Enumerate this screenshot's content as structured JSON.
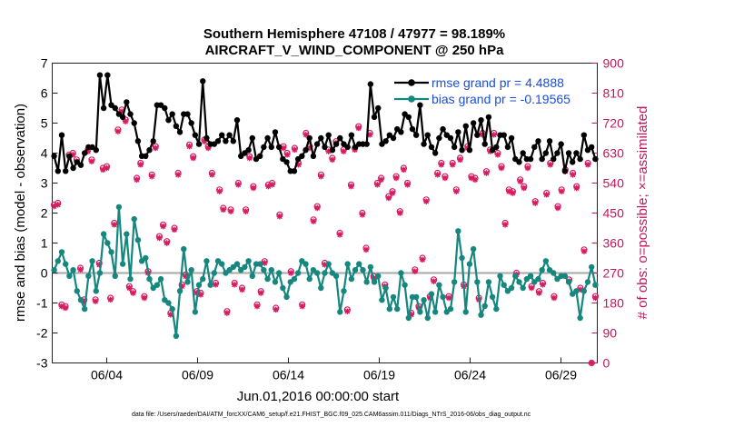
{
  "chart_data": {
    "type": "line",
    "title": "Southern Hemisphere 47108 / 47977 = 98.189%",
    "subtitle": "AIRCRAFT_V_WIND_COMPONENT @ 250 hPa",
    "xlabel": "Jun.01,2016 00:00:00 start",
    "ylabel": "rmse and bias (model - observation)",
    "ylabel_right": "# of obs: o=possible; ×=assimilated",
    "ylim": [
      -3,
      7
    ],
    "ylim_right": [
      0,
      900
    ],
    "xlim": [
      1.0,
      31.0
    ],
    "x_ticks": [
      4,
      9,
      14,
      19,
      24,
      29
    ],
    "x_tick_labels": [
      "06/04",
      "06/09",
      "06/14",
      "06/19",
      "06/24",
      "06/29"
    ],
    "y_ticks": [
      -3,
      -2,
      -1,
      0,
      1,
      2,
      3,
      4,
      5,
      6,
      7
    ],
    "y_tick_labels": [
      "-3",
      "-2",
      "-1",
      "0",
      "1",
      "2",
      "3",
      "4",
      "5",
      "6",
      "7"
    ],
    "y_ticks_right": [
      0,
      90,
      180,
      270,
      360,
      450,
      540,
      630,
      720,
      810,
      900
    ],
    "y_tick_labels_right": [
      "0",
      "90",
      "180",
      "270",
      "360",
      "450",
      "540",
      "630",
      "720",
      "810",
      "900"
    ],
    "legend": [
      {
        "name": "rmse grand pr = 4.4888",
        "color": "#000000"
      },
      {
        "name": "bias grand pr = -0.19565",
        "color": "#16877f"
      }
    ],
    "legend_position": "top-right",
    "footnote": "data file: /Users/raeder/DAI/ATM_forcXX/CAM6_setup/f.e21.FHIST_BGC.f09_025.CAM6assim.011/Diags_NTrS_2016-06/obs_diag_output.nc",
    "series": [
      {
        "name": "rmse",
        "color": "#000000",
        "values": [
          3.9,
          3.4,
          4.6,
          3.4,
          3.9,
          3.5,
          3.7,
          3.6,
          4.0,
          4.2,
          4.2,
          4.1,
          6.6,
          5.5,
          6.6,
          5.6,
          5.5,
          5.3,
          5.2,
          5.7,
          5.3,
          5.0,
          4.4,
          3.9,
          3.9,
          4.1,
          4.4,
          5.6,
          5.6,
          5.5,
          5.1,
          5.3,
          4.9,
          4.7,
          5.3,
          5.3,
          5.0,
          4.6,
          4.3,
          6.4,
          4.5,
          4.3,
          4.3,
          4.4,
          4.6,
          4.4,
          4.6,
          4.4,
          5.1,
          3.9,
          4.0,
          4.1,
          4.5,
          3.8,
          3.9,
          4.2,
          4.5,
          4.2,
          4.7,
          4.2,
          3.8,
          3.7,
          3.4,
          3.4,
          3.8,
          3.9,
          4.1,
          4.5,
          3.9,
          4.3,
          4.5,
          4.2,
          4.6,
          4.1,
          4.3,
          4.5,
          4.3,
          4.2,
          4.6,
          4.2,
          4.3,
          4.3,
          4.3,
          6.3,
          5.2,
          5.5,
          4.3,
          4.4,
          4.6,
          4.5,
          4.8,
          4.7,
          5.3,
          5.2,
          4.8,
          4.6,
          5.6,
          4.3,
          4.6,
          4.2,
          4.0,
          4.5,
          4.8,
          4.6,
          4.5,
          4.2,
          4.7,
          4.1,
          4.9,
          4.1,
          5.0,
          4.6,
          5.1,
          4.3,
          5.2,
          4.1,
          4.2,
          4.6,
          4.6,
          4.2,
          4.5,
          3.8,
          3.7,
          4.0,
          3.8,
          3.8,
          4.2,
          4.4,
          3.8,
          4.0,
          4.4,
          3.8,
          4.0,
          4.3,
          3.4,
          4.0,
          3.7,
          4.0,
          3.8,
          4.6,
          4.1,
          4.2,
          3.8
        ]
      },
      {
        "name": "bias",
        "color": "#16877f",
        "values": [
          0.1,
          0.4,
          0.7,
          0.3,
          -0.1,
          0.1,
          -0.6,
          -0.9,
          -1.2,
          -0.1,
          0.4,
          -0.6,
          0.0,
          1.3,
          1.0,
          0.7,
          -0.1,
          2.2,
          0.3,
          1.3,
          -0.2,
          1.8,
          1.1,
          0.4,
          0.5,
          -0.2,
          -0.5,
          -0.4,
          -0.2,
          -0.9,
          -1.0,
          -1.2,
          -2.1,
          -0.6,
          0.8,
          -0.3,
          0.1,
          -1.3,
          -0.4,
          -0.2,
          0.4,
          -0.4,
          0.0,
          0.4,
          0.3,
          0.0,
          0.1,
          0.2,
          0.3,
          0.1,
          0.2,
          0.4,
          -0.1,
          0.3,
          0.3,
          0.1,
          -0.2,
          0.1,
          -0.3,
          0.0,
          -0.5,
          -0.8,
          -0.3,
          -0.2,
          0.0,
          0.4,
          0.3,
          -0.2,
          0.1,
          0.0,
          -0.5,
          0.0,
          0.3,
          0.0,
          -0.1,
          -1.3,
          -0.6,
          0.3,
          -0.2,
          0.1,
          0.3,
          0.1,
          -0.3,
          0.2,
          -0.3,
          -0.1,
          -0.9,
          -0.5,
          -1.2,
          -0.8,
          -1.2,
          0.0,
          -0.4,
          -1.5,
          -0.8,
          -0.8,
          -1.3,
          -0.9,
          -1.5,
          -0.7,
          -1.3,
          -0.4,
          -0.8,
          -1.3,
          -1.2,
          -0.3,
          1.4,
          0.5,
          -1.3,
          0.3,
          0.8,
          -0.3,
          -1.4,
          -1.1,
          -0.3,
          -0.8,
          -1.2,
          -0.1,
          -0.4,
          -0.6,
          -0.5,
          -0.1,
          -0.3,
          -0.5,
          -0.2,
          -0.1,
          -0.3,
          -0.2,
          0.1,
          0.4,
          0.1,
          0.0,
          -0.2,
          -0.1,
          -0.1,
          -0.3,
          -0.7,
          -0.6,
          -1.5,
          -0.6,
          -0.3,
          0.2,
          -0.4
        ]
      },
      {
        "name": "possible",
        "axis": "right",
        "marker": "o",
        "color": "#d81b60",
        "values": [
          475,
          480,
          175,
          170,
          625,
          630,
          610,
          285,
          190,
          640,
          610,
          190,
          300,
          585,
          590,
          195,
          420,
          700,
          760,
          730,
          230,
          215,
          555,
          600,
          200,
          275,
          565,
          650,
          380,
          415,
          365,
          150,
          405,
          570,
          235,
          265,
          655,
          620,
          215,
          210,
          670,
          650,
          570,
          240,
          520,
          465,
          155,
          460,
          240,
          540,
          225,
          460,
          620,
          530,
          175,
          215,
          305,
          535,
          540,
          165,
          445,
          650,
          630,
          275,
          645,
          600,
          175,
          690,
          650,
          430,
          470,
          565,
          300,
          640,
          615,
          665,
          390,
          640,
          160,
          535,
          645,
          710,
          450,
          345,
          690,
          260,
          540,
          555,
          235,
          500,
          515,
          560,
          455,
          585,
          540,
          150,
          280,
          170,
          315,
          490,
          200,
          250,
          570,
          600,
          560,
          200,
          600,
          520,
          615,
          235,
          650,
          560,
          555,
          195,
          690,
          575,
          640,
          690,
          630,
          590,
          420,
          520,
          515,
          270,
          550,
          530,
          590,
          230,
          485,
          215,
          240,
          510,
          600,
          200,
          470,
          520,
          580,
          250,
          570,
          530,
          225,
          340,
          600,
          0,
          200
        ]
      },
      {
        "name": "assimilated",
        "axis": "right",
        "marker": "x",
        "color": "#d81b60",
        "values": [
          470,
          475,
          170,
          165,
          620,
          625,
          605,
          280,
          185,
          635,
          605,
          185,
          295,
          580,
          585,
          190,
          415,
          695,
          755,
          725,
          225,
          210,
          550,
          595,
          195,
          270,
          560,
          645,
          375,
          410,
          360,
          145,
          400,
          565,
          230,
          260,
          650,
          615,
          210,
          205,
          665,
          645,
          565,
          235,
          515,
          460,
          150,
          455,
          235,
          535,
          220,
          455,
          615,
          525,
          170,
          210,
          300,
          530,
          535,
          160,
          440,
          645,
          625,
          270,
          640,
          595,
          170,
          685,
          645,
          425,
          465,
          560,
          295,
          635,
          610,
          660,
          385,
          635,
          155,
          530,
          640,
          705,
          445,
          340,
          685,
          255,
          535,
          550,
          230,
          495,
          510,
          555,
          450,
          580,
          535,
          145,
          275,
          165,
          310,
          485,
          195,
          245,
          565,
          595,
          555,
          195,
          595,
          515,
          610,
          230,
          645,
          555,
          550,
          190,
          685,
          570,
          635,
          685,
          625,
          585,
          415,
          515,
          510,
          265,
          545,
          525,
          585,
          225,
          480,
          210,
          235,
          505,
          595,
          195,
          465,
          515,
          575,
          245,
          565,
          525,
          220,
          335,
          595,
          0,
          195
        ]
      }
    ]
  }
}
